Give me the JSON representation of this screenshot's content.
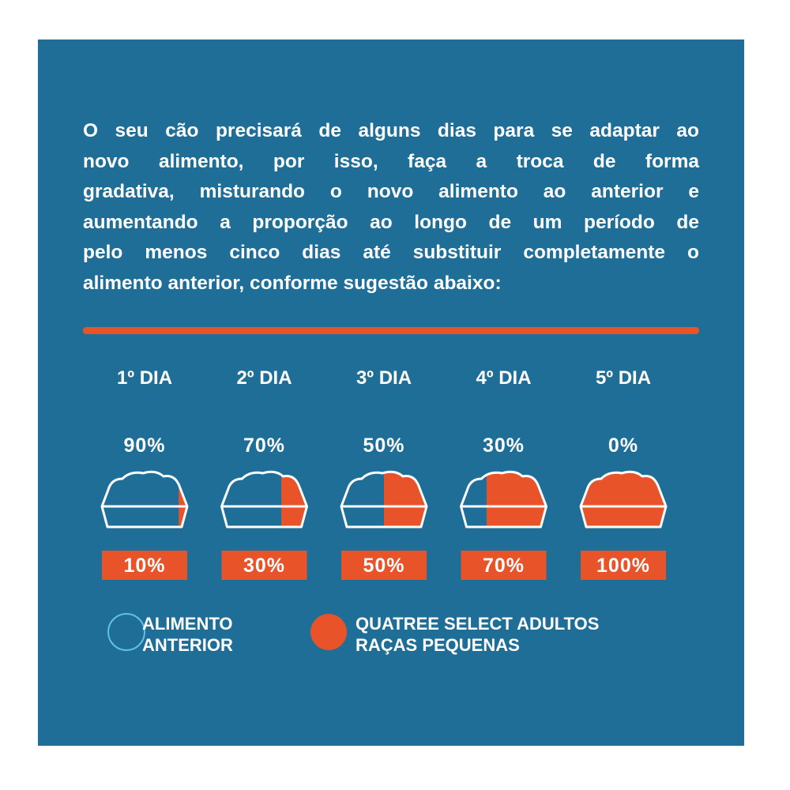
{
  "intro": {
    "lines": [
      "O seu cão precisará de alguns dias para se adaptar ao",
      "novo alimento, por isso, faça a troca de forma",
      "gradativa, misturando o novo alimento ao anterior e",
      "aumentando a proporção ao longo de um período de",
      "pelo menos cinco dias até substituir completamente o",
      "alimento anterior, conforme sugestão abaixo:"
    ]
  },
  "days": [
    {
      "label": "1º DIA",
      "old": 90,
      "old_label": "90%",
      "new": 10,
      "new_label": "10%"
    },
    {
      "label": "2º DIA",
      "old": 70,
      "old_label": "70%",
      "new": 30,
      "new_label": "30%"
    },
    {
      "label": "3º DIA",
      "old": 50,
      "old_label": "50%",
      "new": 50,
      "new_label": "50%"
    },
    {
      "label": "4º DIA",
      "old": 30,
      "old_label": "30%",
      "new": 70,
      "new_label": "70%"
    },
    {
      "label": "5º DIA",
      "old": 0,
      "old_label": "0%",
      "new": 100,
      "new_label": "100%"
    }
  ],
  "legend": {
    "old": {
      "lines": [
        "ALIMENTO",
        "ANTERIOR"
      ],
      "color": "#1f6e98"
    },
    "new": {
      "lines": [
        "QUATREE SELECT ADULTOS",
        "RAÇAS PEQUENAS"
      ],
      "color": "#e8532a"
    }
  }
}
